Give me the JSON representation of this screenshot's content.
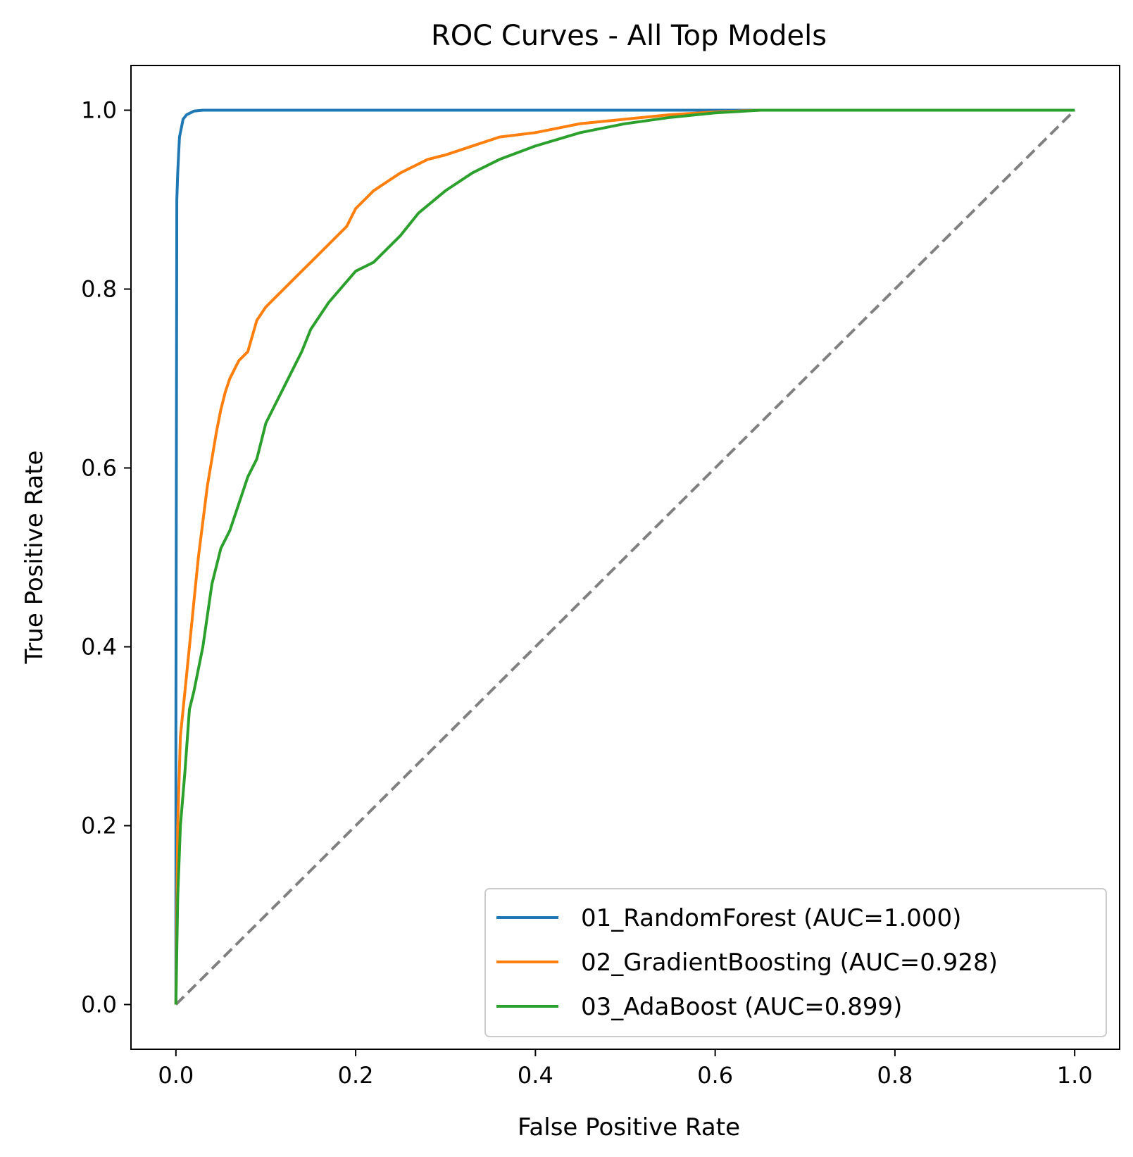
{
  "chart_data": {
    "type": "line",
    "title": "ROC Curves - All Top Models",
    "xlabel": "False Positive Rate",
    "ylabel": "True Positive Rate",
    "xlim": [
      -0.05,
      1.05
    ],
    "ylim": [
      -0.05,
      1.05
    ],
    "x_ticks": [
      "0.0",
      "0.2",
      "0.4",
      "0.6",
      "0.8",
      "1.0"
    ],
    "y_ticks": [
      "0.0",
      "0.2",
      "0.4",
      "0.6",
      "0.8",
      "1.0"
    ],
    "grid": false,
    "legend_position": "lower-right",
    "series": [
      {
        "name": "01_RandomForest (AUC=1.000)",
        "color": "#1f77b4",
        "x": [
          0.0,
          0.0,
          0.001,
          0.002,
          0.003,
          0.004,
          0.006,
          0.008,
          0.012,
          0.02,
          0.03,
          0.1,
          0.3,
          0.6,
          0.8,
          1.0
        ],
        "y": [
          0.0,
          0.3,
          0.9,
          0.93,
          0.95,
          0.97,
          0.98,
          0.99,
          0.995,
          0.999,
          1.0,
          1.0,
          1.0,
          1.0,
          1.0,
          1.0
        ]
      },
      {
        "name": "02_GradientBoosting (AUC=0.928)",
        "color": "#ff7f0e",
        "x": [
          0.0,
          0.002,
          0.005,
          0.01,
          0.015,
          0.02,
          0.025,
          0.03,
          0.035,
          0.04,
          0.045,
          0.05,
          0.055,
          0.06,
          0.065,
          0.07,
          0.08,
          0.09,
          0.1,
          0.11,
          0.12,
          0.13,
          0.15,
          0.17,
          0.19,
          0.2,
          0.22,
          0.25,
          0.28,
          0.3,
          0.33,
          0.36,
          0.4,
          0.45,
          0.5,
          0.55,
          0.6,
          0.65,
          0.7,
          0.8,
          0.9,
          1.0
        ],
        "y": [
          0.0,
          0.2,
          0.3,
          0.35,
          0.4,
          0.45,
          0.5,
          0.54,
          0.58,
          0.61,
          0.64,
          0.665,
          0.685,
          0.7,
          0.71,
          0.72,
          0.73,
          0.765,
          0.78,
          0.79,
          0.8,
          0.81,
          0.83,
          0.85,
          0.87,
          0.89,
          0.91,
          0.93,
          0.945,
          0.95,
          0.96,
          0.97,
          0.975,
          0.985,
          0.99,
          0.995,
          0.998,
          1.0,
          1.0,
          1.0,
          1.0,
          1.0
        ]
      },
      {
        "name": "03_AdaBoost (AUC=0.899)",
        "color": "#2ca02c",
        "x": [
          0.0,
          0.002,
          0.005,
          0.01,
          0.015,
          0.02,
          0.03,
          0.04,
          0.05,
          0.06,
          0.07,
          0.08,
          0.09,
          0.1,
          0.11,
          0.12,
          0.13,
          0.14,
          0.15,
          0.17,
          0.2,
          0.22,
          0.25,
          0.27,
          0.3,
          0.33,
          0.36,
          0.4,
          0.45,
          0.5,
          0.55,
          0.6,
          0.65,
          0.7,
          0.8,
          0.9,
          1.0
        ],
        "y": [
          0.0,
          0.12,
          0.2,
          0.26,
          0.33,
          0.35,
          0.4,
          0.47,
          0.51,
          0.53,
          0.56,
          0.59,
          0.61,
          0.65,
          0.67,
          0.69,
          0.71,
          0.73,
          0.755,
          0.785,
          0.82,
          0.83,
          0.86,
          0.885,
          0.91,
          0.93,
          0.945,
          0.96,
          0.975,
          0.985,
          0.992,
          0.997,
          1.0,
          1.0,
          1.0,
          1.0,
          1.0
        ]
      },
      {
        "color": "#808080",
        "style": "dashed",
        "x": [
          0.0,
          1.0
        ],
        "y": [
          0.0,
          1.0
        ]
      }
    ]
  }
}
